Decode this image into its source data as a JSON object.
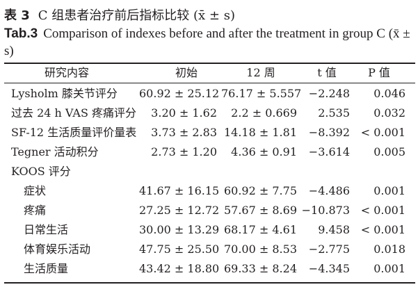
{
  "caption_cn": {
    "label": "表 3",
    "text": "C 组患者治疗前后指标比较 (x̄ ± s)"
  },
  "caption_en": {
    "label": "Tab.3",
    "text": "Comparison of indexes before and after the treatment in group C (x̄ ± s)"
  },
  "header": {
    "item": "研究内容",
    "before": "初始",
    "after": "12 周",
    "t": "t 值",
    "p": "P 值"
  },
  "rows": [
    {
      "name": "Lysholm 膝关节评分",
      "before": "60.92 ± 25.12",
      "after": "76.17 ± 5.557",
      "t": "−2.248",
      "p": "0.046"
    },
    {
      "name": "过去 24 h VAS 疼痛评分",
      "before": "3.20 ± 1.62",
      "after": "2.2 ± 0.669",
      "t": "2.535",
      "p": "0.032"
    },
    {
      "name": "SF-12 生活质量评价量表",
      "before": "3.73 ± 2.83",
      "after": "14.18 ± 1.81",
      "t": "−8.392",
      "p": "< 0.001"
    },
    {
      "name": "Tegner 活动积分",
      "before": "2.73 ± 1.20",
      "after": "4.36 ± 0.91",
      "t": "−3.614",
      "p": "0.005"
    },
    {
      "name": "KOOS 评分",
      "before": "",
      "after": "",
      "t": "",
      "p": ""
    },
    {
      "name": "症状",
      "before": "41.67 ± 16.15",
      "after": "60.92 ± 7.75",
      "t": "−4.486",
      "p": "0.001"
    },
    {
      "name": "疼痛",
      "before": "27.25 ± 12.72",
      "after": "57.67 ± 8.69",
      "t": "−10.873",
      "p": "< 0.001"
    },
    {
      "name": "日常生活",
      "before": "30.00 ± 13.29",
      "after": "68.17 ± 4.61",
      "t": "9.458",
      "p": "< 0.001"
    },
    {
      "name": "体育娱乐活动",
      "before": "47.75 ± 25.50",
      "after": "70.00 ± 8.53",
      "t": "−2.775",
      "p": "0.018"
    },
    {
      "name": "生活质量",
      "before": "43.42 ± 18.80",
      "after": "69.33 ± 8.24",
      "t": "−4.345",
      "p": "0.001"
    }
  ]
}
